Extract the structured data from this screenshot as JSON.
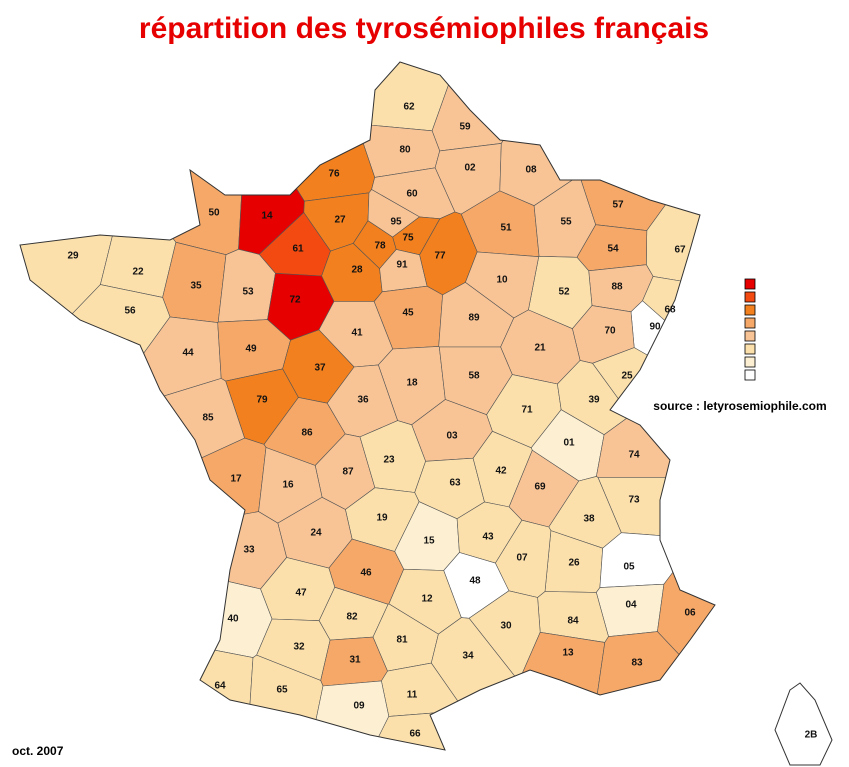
{
  "title": "répartition des tyrosémiophiles français",
  "source": "source : letyrosemiophile.com",
  "date": "oct. 2007",
  "legend": {
    "colors": [
      "#e60000",
      "#f24a10",
      "#f2801e",
      "#f5a868",
      "#f8c496",
      "#fbe0ac",
      "#fdf0d2",
      "#ffffff"
    ]
  },
  "departments": [
    {
      "label": "62",
      "color": "#fbe0ac"
    },
    {
      "label": "59",
      "color": "#f8c496"
    },
    {
      "label": "80",
      "color": "#f8c496"
    },
    {
      "label": "02",
      "color": "#f8c496"
    },
    {
      "label": "08",
      "color": "#f8c496"
    },
    {
      "label": "76",
      "color": "#f2801e"
    },
    {
      "label": "60",
      "color": "#f8c496"
    },
    {
      "label": "51",
      "color": "#f5a868"
    },
    {
      "label": "55",
      "color": "#f8c496"
    },
    {
      "label": "57",
      "color": "#f5a868"
    },
    {
      "label": "67",
      "color": "#fbe0ac"
    },
    {
      "label": "50",
      "color": "#f5a868"
    },
    {
      "label": "14",
      "color": "#e60000"
    },
    {
      "label": "27",
      "color": "#f2801e"
    },
    {
      "label": "95",
      "color": "#f8c496"
    },
    {
      "label": "75",
      "color": "#f2801e"
    },
    {
      "label": "78",
      "color": "#f2801e"
    },
    {
      "label": "61",
      "color": "#f24a10"
    },
    {
      "label": "28",
      "color": "#f2801e"
    },
    {
      "label": "91",
      "color": "#f8c496"
    },
    {
      "label": "77",
      "color": "#f2801e"
    },
    {
      "label": "29",
      "color": "#fbe0ac"
    },
    {
      "label": "22",
      "color": "#fbe0ac"
    },
    {
      "label": "54",
      "color": "#f5a868"
    },
    {
      "label": "88",
      "color": "#f8c496"
    },
    {
      "label": "52",
      "color": "#fbe0ac"
    },
    {
      "label": "10",
      "color": "#f8c496"
    },
    {
      "label": "35",
      "color": "#f5a868"
    },
    {
      "label": "53",
      "color": "#f8c496"
    },
    {
      "label": "72",
      "color": "#e60000"
    },
    {
      "label": "56",
      "color": "#fbe0ac"
    },
    {
      "label": "45",
      "color": "#f5a868"
    },
    {
      "label": "89",
      "color": "#f8c496"
    },
    {
      "label": "68",
      "color": "#fbe0ac"
    },
    {
      "label": "90",
      "color": "#ffffff"
    },
    {
      "label": "70",
      "color": "#f8c496"
    },
    {
      "label": "44",
      "color": "#f8c496"
    },
    {
      "label": "49",
      "color": "#f5a868"
    },
    {
      "label": "41",
      "color": "#f8c496"
    },
    {
      "label": "21",
      "color": "#f8c496"
    },
    {
      "label": "37",
      "color": "#f2801e"
    },
    {
      "label": "18",
      "color": "#f8c496"
    },
    {
      "label": "58",
      "color": "#f8c496"
    },
    {
      "label": "25",
      "color": "#fbe0ac"
    },
    {
      "label": "85",
      "color": "#f8c496"
    },
    {
      "label": "79",
      "color": "#f2801e"
    },
    {
      "label": "36",
      "color": "#f8c496"
    },
    {
      "label": "86",
      "color": "#f5a868"
    },
    {
      "label": "71",
      "color": "#fbe0ac"
    },
    {
      "label": "39",
      "color": "#fbe0ac"
    },
    {
      "label": "03",
      "color": "#f8c496"
    },
    {
      "label": "01",
      "color": "#fdf0d2"
    },
    {
      "label": "74",
      "color": "#f8c496"
    },
    {
      "label": "87",
      "color": "#f8c496"
    },
    {
      "label": "23",
      "color": "#fbe0ac"
    },
    {
      "label": "17",
      "color": "#f5a868"
    },
    {
      "label": "16",
      "color": "#f8c496"
    },
    {
      "label": "63",
      "color": "#fbe0ac"
    },
    {
      "label": "42",
      "color": "#fbe0ac"
    },
    {
      "label": "69",
      "color": "#f8c496"
    },
    {
      "label": "73",
      "color": "#fbe0ac"
    },
    {
      "label": "19",
      "color": "#fbe0ac"
    },
    {
      "label": "38",
      "color": "#fbe0ac"
    },
    {
      "label": "24",
      "color": "#f8c496"
    },
    {
      "label": "15",
      "color": "#fdf0d2"
    },
    {
      "label": "43",
      "color": "#fbe0ac"
    },
    {
      "label": "33",
      "color": "#f8c496"
    },
    {
      "label": "26",
      "color": "#fbe0ac"
    },
    {
      "label": "07",
      "color": "#fbe0ac"
    },
    {
      "label": "05",
      "color": "#ffffff"
    },
    {
      "label": "46",
      "color": "#f5a868"
    },
    {
      "label": "48",
      "color": "#ffffff"
    },
    {
      "label": "47",
      "color": "#fbe0ac"
    },
    {
      "label": "12",
      "color": "#fbe0ac"
    },
    {
      "label": "04",
      "color": "#fdf0d2"
    },
    {
      "label": "40",
      "color": "#fdf0d2"
    },
    {
      "label": "82",
      "color": "#fbe0ac"
    },
    {
      "label": "84",
      "color": "#fbe0ac"
    },
    {
      "label": "06",
      "color": "#f5a868"
    },
    {
      "label": "30",
      "color": "#fbe0ac"
    },
    {
      "label": "81",
      "color": "#fbe0ac"
    },
    {
      "label": "32",
      "color": "#fbe0ac"
    },
    {
      "label": "13",
      "color": "#f5a868"
    },
    {
      "label": "83",
      "color": "#f5a868"
    },
    {
      "label": "34",
      "color": "#fbe0ac"
    },
    {
      "label": "31",
      "color": "#f5a868"
    },
    {
      "label": "64",
      "color": "#fbe0ac"
    },
    {
      "label": "65",
      "color": "#fbe0ac"
    },
    {
      "label": "11",
      "color": "#fbe0ac"
    },
    {
      "label": "09",
      "color": "#fdf0d2"
    },
    {
      "label": "66",
      "color": "#fbe0ac"
    },
    {
      "label": "2B",
      "color": "#ffffff"
    }
  ]
}
